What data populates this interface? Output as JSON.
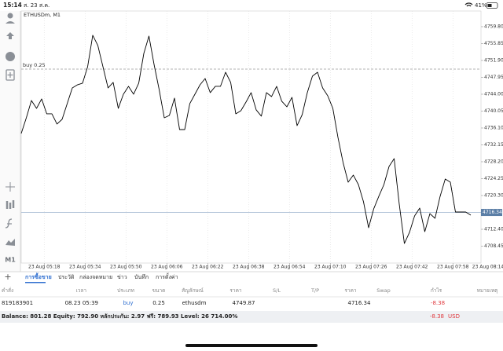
{
  "status_bar": {
    "time": "15:14",
    "date": "ส. 23 ส.ค.",
    "battery": "41%"
  },
  "chart_data": {
    "type": "line",
    "title": "ETHUSDm, M1",
    "color": "#000000",
    "grid": true,
    "x": [
      309,
      311,
      313,
      315,
      317,
      319,
      321,
      323,
      325,
      327,
      329,
      331,
      333,
      335,
      337,
      339,
      341,
      343,
      345,
      347,
      349,
      351,
      353,
      355,
      357,
      359,
      361,
      363,
      365,
      367,
      369,
      371,
      373,
      375,
      377,
      379,
      381,
      383,
      385,
      387,
      389,
      391,
      393,
      395,
      397,
      399,
      401,
      403,
      405,
      407,
      409,
      411,
      413,
      415,
      417,
      419,
      421,
      423,
      425,
      427,
      429,
      431,
      433,
      435,
      437,
      439,
      441,
      443,
      445,
      447,
      449,
      451,
      453,
      455,
      457,
      459,
      461,
      463,
      465,
      467,
      469,
      471,
      473,
      475,
      477,
      479,
      481,
      483,
      485
    ],
    "values": [
      4734.81,
      4738.49,
      4742.53,
      4740.69,
      4742.9,
      4739.41,
      4739.41,
      4737.02,
      4738.12,
      4741.8,
      4745.47,
      4746.2,
      4746.57,
      4750.43,
      4757.78,
      4755.39,
      4750.43,
      4745.47,
      4746.76,
      4740.69,
      4744.0,
      4745.84,
      4744.0,
      4746.57,
      4753.55,
      4757.6,
      4750.98,
      4745.1,
      4738.49,
      4739.04,
      4743.08,
      4735.73,
      4735.73,
      4741.8,
      4744.0,
      4746.2,
      4747.67,
      4744.37,
      4745.84,
      4745.84,
      4749.14,
      4746.76,
      4739.41,
      4740.14,
      4742.16,
      4744.37,
      4740.33,
      4738.86,
      4744.37,
      4743.45,
      4745.84,
      4742.35,
      4741.06,
      4743.27,
      4736.65,
      4739.22,
      4744.37,
      4748.23,
      4749.14,
      4745.47,
      4743.63,
      4740.69,
      4733.9,
      4728.02,
      4723.42,
      4725.08,
      4722.87,
      4718.83,
      4712.77,
      4717.18,
      4720.12,
      4722.87,
      4727.1,
      4728.94,
      4718.28,
      4709.09,
      4711.67,
      4715.52,
      4717.36,
      4711.85,
      4716.07,
      4714.97,
      4720.12,
      4724.16,
      4723.42,
      4716.44,
      4716.44,
      4716.44,
      4715.71
    ],
    "xlim": [
      309,
      489
    ],
    "ylim": [
      4704.5,
      4763.47
    ],
    "xticks": [
      {
        "value": 318,
        "label": "23 Aug 05:18"
      },
      {
        "value": 334,
        "label": "23 Aug 05:34"
      },
      {
        "value": 350,
        "label": "23 Aug 05:50"
      },
      {
        "value": 366,
        "label": "23 Aug 06:06"
      },
      {
        "value": 382,
        "label": "23 Aug 06:22"
      },
      {
        "value": 398,
        "label": "23 Aug 06:38"
      },
      {
        "value": 414,
        "label": "23 Aug 06:54"
      },
      {
        "value": 430,
        "label": "23 Aug 07:10"
      },
      {
        "value": 446,
        "label": "23 Aug 07:26"
      },
      {
        "value": 462,
        "label": "23 Aug 07:42"
      },
      {
        "value": 478,
        "label": "23 Aug 07:58"
      },
      {
        "value": 494,
        "label": "23 Aug 08:14"
      }
    ],
    "yticks": [
      {
        "value": 4759.8,
        "label": "4759.80"
      },
      4755.85,
      {
        "value": 4751.9,
        "label": "4751.90"
      },
      4747.95,
      {
        "value": 4744,
        "label": "4744.00"
      },
      4740.05,
      {
        "value": 4736.1,
        "label": "4736.10"
      },
      4732.15,
      {
        "value": 4728.2,
        "label": "4728.20"
      },
      4724.25,
      {
        "value": 4720.3,
        "label": "4720.30"
      },
      {
        "value": 4712.4,
        "label": "4712.40"
      },
      4708.45
    ],
    "order_line": {
      "label": "buy 0.25",
      "value": 4749.87
    },
    "current_price": 4716.34
  },
  "toolbar": {
    "timeframe": "M1"
  },
  "tabs": [
    "การซื้อขาย",
    "ประวัติ",
    "กล่องจดหมาย",
    "ข่าว",
    "บันทึก",
    "การตั้งค่า"
  ],
  "active_tab": 0,
  "table": {
    "columns": [
      "คำสั่ง",
      "เวลา",
      "ประเภท",
      "ขนาด",
      "สัญลักษณ์",
      "ราคา",
      "S/L",
      "T/P",
      "ราคา",
      "Swap",
      "กำไร",
      "หมายเหตุ"
    ],
    "rows": [
      [
        "819183901",
        "08.23 05:39",
        "buy",
        "0.25",
        "ethusdm",
        "4749.87",
        "",
        "",
        "4716.34",
        "",
        "-8.38",
        ""
      ]
    ]
  },
  "footer": {
    "summary": "Balance: 801.28 Equity: 792.90 หลักประกัน: 2.97 ฟรี: 789.93 Level: 26 714.00%",
    "profit": "-8.38",
    "currency": "USD"
  }
}
